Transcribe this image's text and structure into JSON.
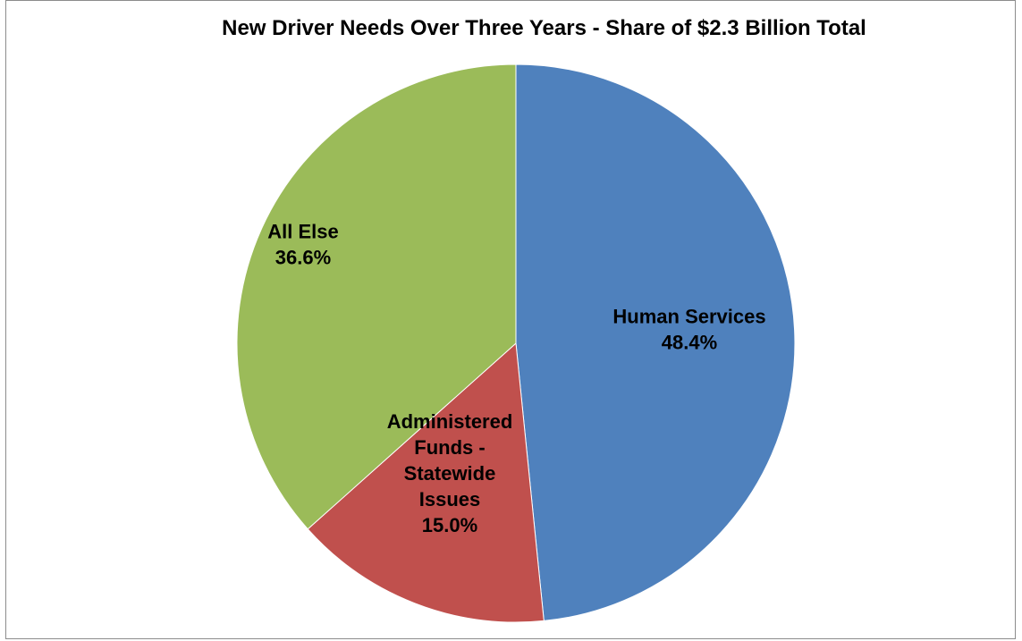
{
  "chart_data": {
    "type": "pie",
    "title": "New Driver Needs Over Three Years - Share of $2.3 Billion Total",
    "slices": [
      {
        "label_lines": [
          "Human Services"
        ],
        "value_label": "48.4%",
        "value": 48.4,
        "color": "#4F81BD"
      },
      {
        "label_lines": [
          "Administered",
          "Funds -",
          "Statewide",
          "Issues"
        ],
        "value_label": "15.0%",
        "value": 15.0,
        "color": "#C0504D"
      },
      {
        "label_lines": [
          "All Else"
        ],
        "value_label": "36.6%",
        "value": 36.6,
        "color": "#9BBB59"
      }
    ],
    "start_angle": "12 o'clock",
    "direction": "clockwise",
    "legend": "none"
  }
}
